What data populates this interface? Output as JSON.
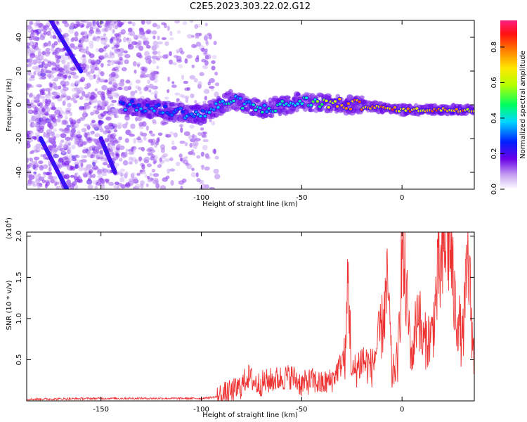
{
  "title": "C2E5.2023.303.22.02.G12",
  "chart_data": [
    {
      "type": "heatmap",
      "xlabel": "Height of straight line (km)",
      "ylabel": "Frequency (Hz)",
      "xlim": [
        -187,
        36
      ],
      "ylim": [
        -50,
        50
      ],
      "xticks": [
        -150,
        -100,
        -50,
        0
      ],
      "yticks": [
        -40,
        -20,
        0,
        20,
        40
      ],
      "colorbar": {
        "label": "Normalized spectral amplitude",
        "range": [
          0,
          0.95
        ],
        "ticks": [
          "0.0",
          "0.2",
          "0.4",
          "0.6",
          "0.8"
        ],
        "tick_values": [
          0,
          0.2,
          0.4,
          0.6,
          0.8
        ]
      },
      "ridge": {
        "description_points": [
          {
            "x": -140,
            "y": 0,
            "amp": 0.35
          },
          {
            "x": -100,
            "y": -6,
            "amp": 0.4
          },
          {
            "x": -85,
            "y": 3,
            "amp": 0.45
          },
          {
            "x": -70,
            "y": -3,
            "amp": 0.45
          },
          {
            "x": -50,
            "y": 2,
            "amp": 0.45
          },
          {
            "x": -25,
            "y": 0,
            "amp": 0.9
          },
          {
            "x": 0,
            "y": -3,
            "amp": 0.85
          },
          {
            "x": 36,
            "y": -3,
            "amp": 0.85
          }
        ]
      },
      "streaks": [
        {
          "x0": -175,
          "y0": 50,
          "x1": -160,
          "y1": 20
        },
        {
          "x0": -180,
          "y0": -20,
          "x1": -167,
          "y1": -50
        },
        {
          "x0": -150,
          "y0": -20,
          "x1": -143,
          "y1": -40
        }
      ]
    },
    {
      "type": "line",
      "xlabel": "Height of straight line (km)",
      "ylabel": "SNR (10 * v/v)",
      "multiplier": "(x10",
      "multiplier_exp": "4",
      "multiplier_close": ")",
      "xlim": [
        -187,
        36
      ],
      "ylim": [
        0,
        2.05
      ],
      "xticks": [
        -150,
        -100,
        -50,
        0
      ],
      "yticks": [
        "0.5",
        "1.0",
        "1.5",
        "2.0"
      ],
      "ytick_values": [
        0.5,
        1.0,
        1.5,
        2.0
      ],
      "color": "#ee3333",
      "series": [
        {
          "name": "SNR",
          "x": [
            -187,
            -150,
            -120,
            -100,
            -92,
            -85,
            -80,
            -77,
            -72,
            -65,
            -55,
            -50,
            -45,
            -40,
            -35,
            -28,
            -27,
            -25,
            -20,
            -15,
            -10,
            -7,
            -5,
            -2,
            0,
            2,
            5,
            8,
            10,
            15,
            18,
            20,
            22,
            24,
            26,
            28,
            30,
            33,
            36
          ],
          "y": [
            0.02,
            0.03,
            0.03,
            0.03,
            0.05,
            0.1,
            0.18,
            0.3,
            0.2,
            0.25,
            0.3,
            0.2,
            0.25,
            0.2,
            0.25,
            0.55,
            1.58,
            0.3,
            0.5,
            0.4,
            0.9,
            1.4,
            0.3,
            0.5,
            1.85,
            1.3,
            0.5,
            1.2,
            0.7,
            0.8,
            1.5,
            1.6,
            2.05,
            1.9,
            1.2,
            1.0,
            0.7,
            1.7,
            0.4
          ]
        }
      ]
    }
  ]
}
